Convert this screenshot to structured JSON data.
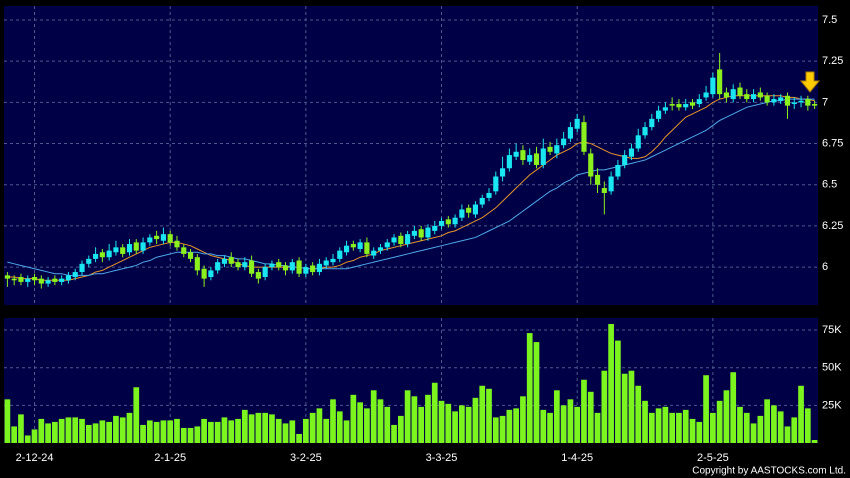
{
  "chart_data": {
    "type": "candlestick",
    "categories": [
      null,
      null,
      null,
      null,
      "2-12-24",
      null,
      null,
      null,
      null,
      null,
      null,
      null,
      null,
      null,
      null,
      null,
      null,
      null,
      null,
      null,
      null,
      null,
      null,
      null,
      "2-1-25",
      null,
      null,
      null,
      null,
      null,
      null,
      null,
      null,
      null,
      null,
      null,
      null,
      null,
      null,
      null,
      null,
      null,
      null,
      null,
      "3-2-25",
      null,
      null,
      null,
      null,
      null,
      null,
      null,
      null,
      null,
      null,
      null,
      null,
      null,
      null,
      null,
      null,
      null,
      null,
      null,
      "3-3-25",
      null,
      null,
      null,
      null,
      null,
      null,
      null,
      null,
      null,
      null,
      null,
      null,
      null,
      null,
      null,
      null,
      null,
      null,
      null,
      "1-4-25",
      null,
      null,
      null,
      null,
      null,
      null,
      null,
      null,
      null,
      null,
      null,
      null,
      null,
      null,
      null,
      null,
      null,
      null,
      null,
      "2-5-25",
      null,
      null,
      null,
      null,
      null,
      null,
      null,
      null,
      null,
      null,
      null,
      null,
      null,
      null,
      null
    ],
    "open": [
      5.95,
      5.93,
      5.94,
      5.91,
      5.94,
      5.93,
      5.9,
      5.93,
      5.91,
      5.92,
      5.94,
      5.97,
      6.02,
      6.05,
      6.09,
      6.06,
      6.09,
      6.12,
      6.09,
      6.15,
      6.1,
      6.15,
      6.19,
      6.16,
      6.2,
      6.16,
      6.12,
      6.09,
      6.06,
      5.99,
      5.94,
      5.98,
      6.02,
      6.06,
      6.03,
      6.0,
      6.04,
      5.97,
      5.94,
      6.0,
      6.03,
      6.01,
      5.98,
      6.04,
      5.96,
      6.01,
      5.97,
      6.01,
      6.03,
      6.05,
      6.09,
      6.14,
      6.11,
      6.15,
      6.07,
      6.1,
      6.12,
      6.15,
      6.19,
      6.14,
      6.19,
      6.23,
      6.18,
      6.22,
      6.25,
      6.29,
      6.26,
      6.3,
      6.36,
      6.32,
      6.38,
      6.42,
      6.46,
      6.55,
      6.6,
      6.67,
      6.71,
      6.64,
      6.69,
      6.62,
      6.73,
      6.69,
      6.74,
      6.78,
      6.84,
      6.88,
      6.69,
      6.56,
      6.48,
      6.46,
      6.55,
      6.62,
      6.67,
      6.72,
      6.8,
      6.85,
      6.9,
      6.95,
      6.99,
      6.99,
      6.97,
      7.0,
      6.99,
      7.03,
      7.05,
      7.2,
      7.06,
      7.02,
      7.09,
      7.05,
      7.02,
      7.06,
      7.04,
      7.0,
      7.01,
      7.04,
      6.99,
      7.0,
      7.02,
      6.99
    ],
    "high": [
      5.97,
      5.95,
      5.96,
      5.95,
      5.96,
      5.95,
      5.94,
      5.95,
      5.95,
      5.97,
      5.99,
      6.04,
      6.07,
      6.12,
      6.11,
      6.14,
      6.16,
      6.14,
      6.17,
      6.17,
      6.18,
      6.2,
      6.22,
      6.24,
      6.22,
      6.19,
      6.14,
      6.11,
      6.08,
      6.01,
      6.0,
      6.05,
      6.07,
      6.09,
      6.05,
      6.06,
      6.07,
      5.99,
      6.02,
      6.04,
      6.05,
      6.03,
      6.05,
      6.06,
      6.02,
      6.03,
      6.05,
      6.06,
      6.08,
      6.12,
      6.16,
      6.16,
      6.17,
      6.18,
      6.12,
      6.14,
      6.17,
      6.2,
      6.21,
      6.22,
      6.25,
      6.25,
      6.26,
      6.28,
      6.3,
      6.31,
      6.32,
      6.38,
      6.38,
      6.4,
      6.44,
      6.48,
      6.58,
      6.67,
      6.72,
      6.75,
      6.74,
      6.72,
      6.73,
      6.78,
      6.76,
      6.78,
      6.82,
      6.88,
      6.93,
      6.92,
      6.72,
      6.6,
      6.52,
      6.58,
      6.65,
      6.71,
      6.75,
      6.84,
      6.88,
      6.93,
      6.98,
      7.0,
      7.03,
      7.02,
      7.02,
      7.02,
      7.05,
      7.1,
      7.18,
      7.3,
      7.09,
      7.11,
      7.12,
      7.08,
      7.08,
      7.09,
      7.06,
      7.05,
      7.05,
      7.06,
      7.03,
      7.04,
      7.04,
      7.01
    ],
    "low": [
      5.88,
      5.89,
      5.89,
      5.88,
      5.89,
      5.87,
      5.88,
      5.89,
      5.89,
      5.9,
      5.92,
      5.95,
      6.0,
      6.03,
      6.03,
      6.04,
      6.07,
      6.06,
      6.07,
      6.08,
      6.08,
      6.13,
      6.14,
      6.14,
      6.13,
      6.1,
      6.06,
      6.03,
      5.95,
      5.88,
      5.92,
      5.96,
      6.0,
      6.0,
      5.98,
      5.98,
      5.94,
      5.9,
      5.92,
      5.98,
      5.98,
      5.95,
      5.96,
      5.94,
      5.94,
      5.95,
      5.95,
      5.99,
      6.01,
      6.03,
      6.07,
      6.1,
      6.09,
      6.06,
      6.05,
      6.08,
      6.1,
      6.13,
      6.12,
      6.12,
      6.17,
      6.16,
      6.16,
      6.2,
      6.23,
      6.24,
      6.24,
      6.28,
      6.3,
      6.3,
      6.36,
      6.4,
      6.44,
      6.52,
      6.58,
      6.65,
      6.62,
      6.62,
      6.6,
      6.6,
      6.68,
      6.66,
      6.72,
      6.76,
      6.82,
      6.68,
      6.5,
      6.45,
      6.32,
      6.44,
      6.53,
      6.6,
      6.65,
      6.7,
      6.78,
      6.83,
      6.88,
      6.93,
      6.95,
      6.95,
      6.95,
      6.96,
      6.97,
      7.01,
      7.03,
      7.02,
      7.0,
      7.0,
      7.02,
      7.0,
      7.0,
      7.01,
      6.98,
      6.98,
      6.99,
      6.9,
      6.96,
      6.97,
      6.95,
      6.96
    ],
    "close": [
      5.93,
      5.92,
      5.91,
      5.93,
      5.92,
      5.9,
      5.92,
      5.91,
      5.93,
      5.95,
      5.97,
      6.02,
      6.05,
      6.08,
      6.06,
      6.1,
      6.12,
      6.08,
      6.14,
      6.1,
      6.15,
      6.18,
      6.17,
      6.2,
      6.15,
      6.12,
      6.08,
      6.05,
      5.98,
      5.93,
      5.98,
      6.03,
      6.05,
      6.02,
      6.0,
      6.03,
      5.96,
      5.93,
      6.0,
      6.02,
      6.0,
      5.98,
      6.03,
      5.96,
      6.0,
      5.97,
      6.02,
      6.04,
      6.05,
      6.1,
      6.13,
      6.12,
      6.15,
      6.08,
      6.1,
      6.12,
      6.15,
      6.18,
      6.14,
      6.2,
      6.22,
      6.18,
      6.24,
      6.25,
      6.28,
      6.26,
      6.3,
      6.35,
      6.33,
      6.38,
      6.42,
      6.45,
      6.55,
      6.6,
      6.68,
      6.7,
      6.65,
      6.68,
      6.62,
      6.72,
      6.7,
      6.74,
      6.78,
      6.85,
      6.9,
      6.7,
      6.55,
      6.5,
      6.45,
      6.55,
      6.62,
      6.68,
      6.72,
      6.8,
      6.85,
      6.9,
      6.95,
      6.97,
      6.98,
      6.97,
      6.99,
      6.98,
      7.02,
      7.06,
      7.15,
      7.05,
      7.03,
      7.08,
      7.04,
      7.02,
      7.05,
      7.03,
      7.0,
      7.02,
      7.03,
      6.98,
      7.0,
      7.01,
      6.98,
      6.98
    ],
    "up_color": "#19e6f0",
    "down_color": "#8cf01e",
    "ma_lines": [
      {
        "color": "#e8952c",
        "values": [
          5.94,
          5.94,
          5.93,
          5.93,
          5.93,
          5.92,
          5.92,
          5.92,
          5.92,
          5.92,
          5.93,
          5.94,
          5.95,
          5.97,
          5.98,
          6.0,
          6.02,
          6.04,
          6.06,
          6.08,
          6.1,
          6.12,
          6.13,
          6.14,
          6.15,
          6.15,
          6.14,
          6.13,
          6.11,
          6.09,
          6.07,
          6.06,
          6.05,
          6.04,
          6.02,
          6.01,
          6.0,
          6.0,
          6.0,
          6.0,
          6.0,
          6.0,
          6.0,
          6.0,
          5.99,
          5.99,
          5.99,
          6.0,
          6.0,
          6.01,
          6.03,
          6.04,
          6.06,
          6.07,
          6.08,
          6.1,
          6.11,
          6.12,
          6.13,
          6.14,
          6.15,
          6.16,
          6.17,
          6.18,
          6.19,
          6.21,
          6.22,
          6.24,
          6.26,
          6.28,
          6.3,
          6.33,
          6.36,
          6.4,
          6.44,
          6.48,
          6.52,
          6.56,
          6.59,
          6.62,
          6.65,
          6.68,
          6.7,
          6.72,
          6.75,
          6.76,
          6.75,
          6.73,
          6.71,
          6.69,
          6.68,
          6.67,
          6.66,
          6.66,
          6.67,
          6.7,
          6.74,
          6.79,
          6.83,
          6.87,
          6.91,
          6.93,
          6.95,
          6.97,
          7.0,
          7.02,
          7.03,
          7.04,
          7.04,
          7.04,
          7.04,
          7.04,
          7.04,
          7.04,
          7.04,
          7.03,
          7.03,
          7.02,
          7.02,
          7.01
        ]
      },
      {
        "color": "#4fa8e8",
        "values": [
          6.03,
          6.02,
          6.01,
          6.0,
          5.99,
          5.98,
          5.97,
          5.96,
          5.96,
          5.95,
          5.95,
          5.95,
          5.95,
          5.96,
          5.96,
          5.97,
          5.98,
          5.99,
          6.0,
          6.01,
          6.03,
          6.04,
          6.06,
          6.07,
          6.08,
          6.09,
          6.09,
          6.09,
          6.09,
          6.08,
          6.08,
          6.07,
          6.07,
          6.06,
          6.05,
          6.05,
          6.04,
          6.03,
          6.02,
          6.02,
          6.01,
          6.01,
          6.0,
          6.0,
          5.99,
          5.99,
          5.99,
          5.99,
          5.99,
          5.99,
          5.99,
          6.0,
          6.01,
          6.02,
          6.03,
          6.04,
          6.05,
          6.06,
          6.07,
          6.08,
          6.09,
          6.1,
          6.11,
          6.12,
          6.13,
          6.14,
          6.15,
          6.16,
          6.17,
          6.18,
          6.2,
          6.22,
          6.24,
          6.26,
          6.28,
          6.31,
          6.34,
          6.37,
          6.4,
          6.43,
          6.46,
          6.48,
          6.51,
          6.53,
          6.56,
          6.57,
          6.58,
          6.59,
          6.59,
          6.6,
          6.61,
          6.62,
          6.63,
          6.64,
          6.65,
          6.67,
          6.69,
          6.71,
          6.73,
          6.75,
          6.77,
          6.79,
          6.81,
          6.83,
          6.86,
          6.89,
          6.91,
          6.93,
          6.95,
          6.97,
          6.98,
          6.99,
          7.0,
          7.01,
          7.01,
          7.02,
          7.02,
          7.02,
          7.02,
          7.02
        ]
      }
    ],
    "ylim": [
      5.77,
      7.585
    ],
    "yticks": [
      6,
      6.25,
      6.5,
      6.75,
      7,
      7.25,
      7.5
    ],
    "grid": true,
    "volume": {
      "color": "#7cf51f",
      "ylim": [
        0,
        83000
      ],
      "yticks": [
        {
          "value": 25000,
          "label": "25K"
        },
        {
          "value": 50000,
          "label": "50K"
        },
        {
          "value": 75000,
          "label": "75K"
        }
      ],
      "values": [
        29000,
        11000,
        19000,
        5000,
        9000,
        16000,
        13000,
        14000,
        16000,
        17000,
        17000,
        16000,
        12000,
        13000,
        15000,
        14000,
        18000,
        17000,
        20000,
        37000,
        12000,
        15000,
        14000,
        15000,
        15000,
        16000,
        10000,
        10000,
        11000,
        16000,
        14000,
        14000,
        17000,
        15000,
        16000,
        22000,
        19000,
        20000,
        20000,
        19000,
        16000,
        13000,
        15000,
        6000,
        16000,
        20000,
        23000,
        16000,
        29000,
        21000,
        15000,
        32000,
        27000,
        23000,
        35000,
        29000,
        24000,
        12000,
        18000,
        35000,
        31000,
        24000,
        32000,
        40000,
        28000,
        26000,
        21000,
        25000,
        24000,
        30000,
        38000,
        36000,
        17000,
        18000,
        22000,
        23000,
        31000,
        73000,
        67000,
        22000,
        20000,
        35000,
        25000,
        29000,
        24000,
        42000,
        34000,
        20000,
        48000,
        79000,
        68000,
        46000,
        48000,
        38000,
        28000,
        20000,
        23000,
        24000,
        20000,
        20000,
        22000,
        16000,
        14000,
        45000,
        20000,
        28000,
        35000,
        47000,
        24000,
        20000,
        13000,
        18000,
        29000,
        25000,
        21000,
        11000,
        17000,
        38000,
        23000,
        2000
      ]
    },
    "copyright": "Copyright by AASTOCKS.com Ltd."
  }
}
